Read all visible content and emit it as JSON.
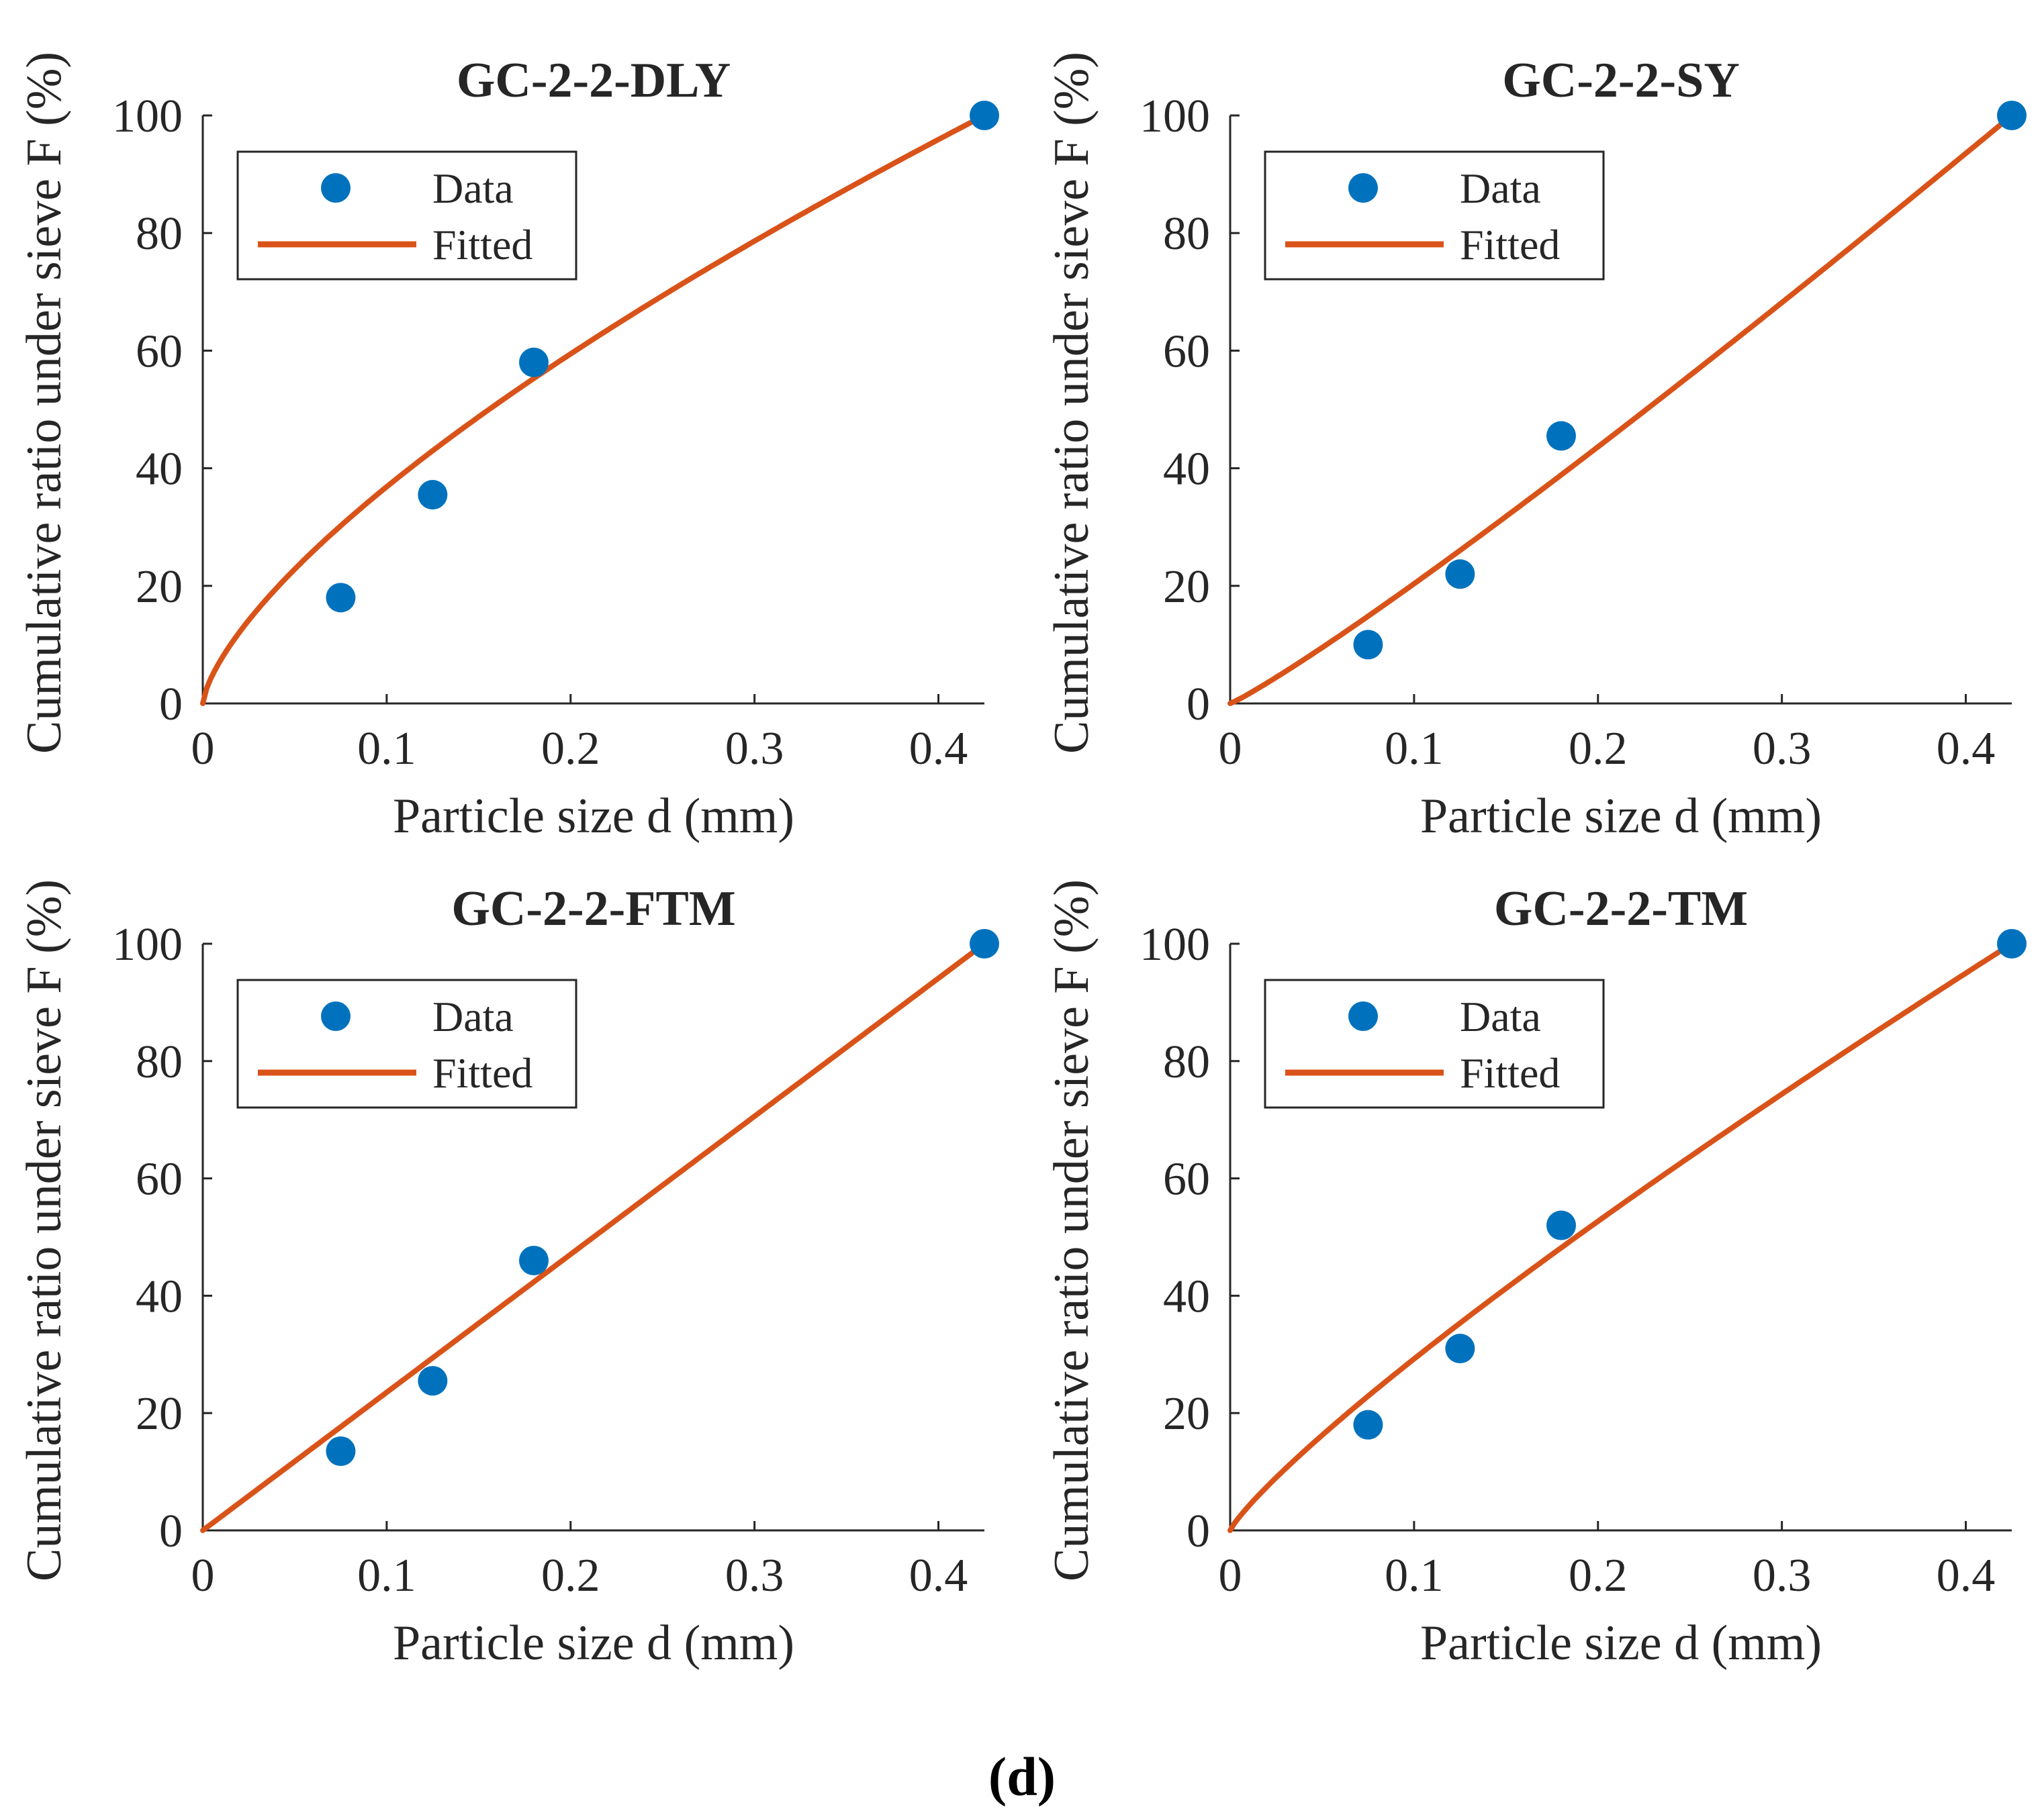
{
  "figure_caption": "(d)",
  "colors": {
    "data": "#0072BD",
    "fitted": "#D95319",
    "axis": "#262626",
    "grid_bg": "#ffffff"
  },
  "chart_data": [
    {
      "type": "scatter",
      "title": "GC-2-2-DLY",
      "xlabel": "Particle size d (mm)",
      "ylabel": "Cumulative ratio under sieve F (%)",
      "xlim": [
        0,
        0.425
      ],
      "ylim": [
        0,
        100
      ],
      "xticks": [
        0,
        0.1,
        0.2,
        0.3,
        0.4
      ],
      "xtick_labels": [
        "0",
        "0.1",
        "0.2",
        "0.3",
        "0.4"
      ],
      "yticks": [
        0,
        20,
        40,
        60,
        80,
        100
      ],
      "ytick_labels": [
        "0",
        "20",
        "40",
        "60",
        "80",
        "100"
      ],
      "legend": [
        "Data",
        "Fitted"
      ],
      "series": [
        {
          "name": "Data",
          "kind": "points",
          "x": [
            0.075,
            0.125,
            0.18,
            0.425
          ],
          "y": [
            18,
            35.5,
            58,
            100
          ]
        },
        {
          "name": "Fitted",
          "kind": "power_curve",
          "exponent": 0.69,
          "x_max": 0.425,
          "y_max": 100
        }
      ]
    },
    {
      "type": "scatter",
      "title": "GC-2-2-SY",
      "xlabel": "Particle size d (mm)",
      "ylabel": "Cumulative ratio under sieve F (%)",
      "xlim": [
        0,
        0.425
      ],
      "ylim": [
        0,
        100
      ],
      "xticks": [
        0,
        0.1,
        0.2,
        0.3,
        0.4
      ],
      "xtick_labels": [
        "0",
        "0.1",
        "0.2",
        "0.3",
        "0.4"
      ],
      "yticks": [
        0,
        20,
        40,
        60,
        80,
        100
      ],
      "ytick_labels": [
        "0",
        "20",
        "40",
        "60",
        "80",
        "100"
      ],
      "legend": [
        "Data",
        "Fitted"
      ],
      "series": [
        {
          "name": "Data",
          "kind": "points",
          "x": [
            0.075,
            0.125,
            0.18,
            0.425
          ],
          "y": [
            10,
            22,
            45.5,
            100
          ]
        },
        {
          "name": "Fitted",
          "kind": "power_curve",
          "exponent": 1.1,
          "x_max": 0.425,
          "y_max": 100
        }
      ]
    },
    {
      "type": "scatter",
      "title": "GC-2-2-FTM",
      "xlabel": "Particle size d (mm)",
      "ylabel": "Cumulative ratio under sieve F (%)",
      "xlim": [
        0,
        0.425
      ],
      "ylim": [
        0,
        100
      ],
      "xticks": [
        0,
        0.1,
        0.2,
        0.3,
        0.4
      ],
      "xtick_labels": [
        "0",
        "0.1",
        "0.2",
        "0.3",
        "0.4"
      ],
      "yticks": [
        0,
        20,
        40,
        60,
        80,
        100
      ],
      "ytick_labels": [
        "0",
        "20",
        "40",
        "60",
        "80",
        "100"
      ],
      "legend": [
        "Data",
        "Fitted"
      ],
      "series": [
        {
          "name": "Data",
          "kind": "points",
          "x": [
            0.075,
            0.125,
            0.18,
            0.425
          ],
          "y": [
            13.5,
            25.5,
            46,
            100
          ]
        },
        {
          "name": "Fitted",
          "kind": "power_curve",
          "exponent": 1.0,
          "x_max": 0.425,
          "y_max": 100
        }
      ]
    },
    {
      "type": "scatter",
      "title": "GC-2-2-TM",
      "xlabel": "Particle size d (mm)",
      "ylabel": "Cumulative ratio under sieve F (%)",
      "xlim": [
        0,
        0.425
      ],
      "ylim": [
        0,
        100
      ],
      "xticks": [
        0,
        0.1,
        0.2,
        0.3,
        0.4
      ],
      "xtick_labels": [
        "0",
        "0.1",
        "0.2",
        "0.3",
        "0.4"
      ],
      "yticks": [
        0,
        20,
        40,
        60,
        80,
        100
      ],
      "ytick_labels": [
        "0",
        "20",
        "40",
        "60",
        "80",
        "100"
      ],
      "legend": [
        "Data",
        "Fitted"
      ],
      "series": [
        {
          "name": "Data",
          "kind": "points",
          "x": [
            0.075,
            0.125,
            0.18,
            0.425
          ],
          "y": [
            18,
            31,
            52,
            100
          ]
        },
        {
          "name": "Fitted",
          "kind": "power_curve",
          "exponent": 0.85,
          "x_max": 0.425,
          "y_max": 100
        }
      ]
    }
  ]
}
